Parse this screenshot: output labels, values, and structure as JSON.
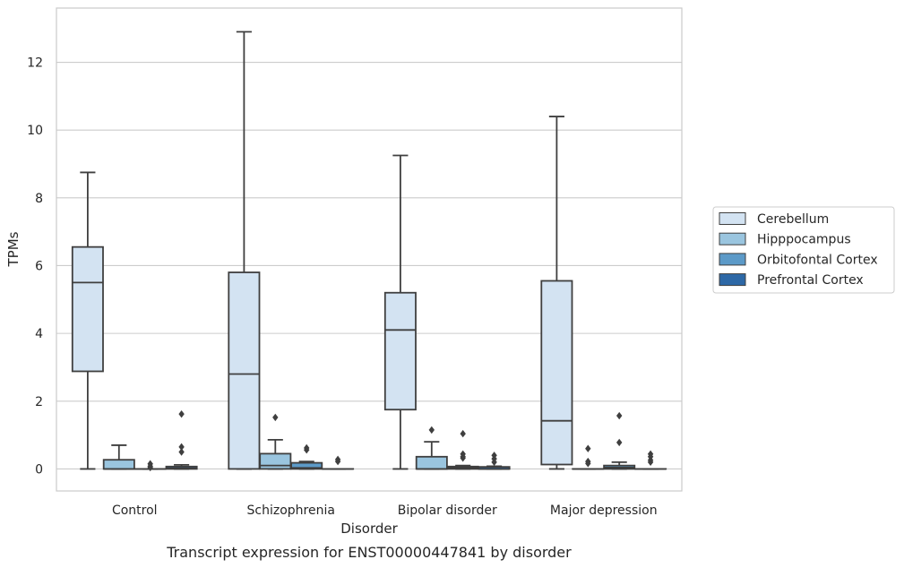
{
  "caption": "Transcript expression for ENST00000447841 by disorder",
  "chart_data": {
    "type": "box",
    "xlabel": "Disorder",
    "ylabel": "TPMs",
    "categories": [
      "Control",
      "Schizophrenia",
      "Bipolar disorder",
      "Major depression"
    ],
    "ylim": [
      -0.65,
      13.6
    ],
    "yticks": [
      0,
      2,
      4,
      6,
      8,
      10,
      12
    ],
    "ytick_labels": [
      "0",
      "2",
      "4",
      "6",
      "8",
      "10",
      "12"
    ],
    "grid": "horizontal",
    "legend_position": "right",
    "series": [
      {
        "name": "Cerebellum",
        "color": "#d3e3f2",
        "boxes": [
          {
            "whislo": 0.0,
            "q1": 2.88,
            "med": 5.5,
            "q3": 6.55,
            "whishi": 8.75,
            "fliers": []
          },
          {
            "whislo": 0.0,
            "q1": 0.0,
            "med": 2.8,
            "q3": 5.8,
            "whishi": 12.9,
            "fliers": []
          },
          {
            "whislo": 0.0,
            "q1": 1.75,
            "med": 4.1,
            "q3": 5.2,
            "whishi": 9.25,
            "fliers": []
          },
          {
            "whislo": 0.0,
            "q1": 0.13,
            "med": 1.42,
            "q3": 5.55,
            "whishi": 10.4,
            "fliers": []
          }
        ]
      },
      {
        "name": "Hipppocampus",
        "color": "#9ac5df",
        "boxes": [
          {
            "whislo": 0.0,
            "q1": 0.0,
            "med": 0.0,
            "q3": 0.27,
            "whishi": 0.7,
            "fliers": []
          },
          {
            "whislo": 0.0,
            "q1": 0.0,
            "med": 0.1,
            "q3": 0.45,
            "whishi": 0.86,
            "fliers": [
              1.52
            ]
          },
          {
            "whislo": 0.0,
            "q1": 0.0,
            "med": 0.0,
            "q3": 0.36,
            "whishi": 0.8,
            "fliers": [
              1.15
            ]
          },
          {
            "whislo": 0.0,
            "q1": 0.0,
            "med": 0.0,
            "q3": 0.0,
            "whishi": 0.0,
            "fliers": [
              0.6,
              0.22,
              0.16
            ]
          }
        ]
      },
      {
        "name": "Orbitofontal Cortex",
        "color": "#5c9ac8",
        "boxes": [
          {
            "whislo": 0.0,
            "q1": 0.0,
            "med": 0.0,
            "q3": 0.0,
            "whishi": 0.0,
            "fliers": [
              0.15,
              0.08,
              0.04
            ]
          },
          {
            "whislo": 0.0,
            "q1": 0.0,
            "med": 0.03,
            "q3": 0.18,
            "whishi": 0.22,
            "fliers": [
              0.62,
              0.56
            ]
          },
          {
            "whislo": 0.0,
            "q1": 0.0,
            "med": 0.03,
            "q3": 0.07,
            "whishi": 0.1,
            "fliers": [
              1.04,
              0.44,
              0.36,
              0.32
            ]
          },
          {
            "whislo": 0.0,
            "q1": 0.0,
            "med": 0.04,
            "q3": 0.1,
            "whishi": 0.2,
            "fliers": [
              1.57,
              0.78
            ]
          }
        ]
      },
      {
        "name": "Prefrontal Cortex",
        "color": "#2d68a6",
        "boxes": [
          {
            "whislo": 0.0,
            "q1": 0.0,
            "med": 0.02,
            "q3": 0.07,
            "whishi": 0.12,
            "fliers": [
              1.62,
              0.65,
              0.5
            ]
          },
          {
            "whislo": 0.0,
            "q1": 0.0,
            "med": 0.0,
            "q3": 0.0,
            "whishi": 0.0,
            "fliers": [
              0.28,
              0.22
            ]
          },
          {
            "whislo": 0.0,
            "q1": 0.0,
            "med": 0.0,
            "q3": 0.06,
            "whishi": 0.08,
            "fliers": [
              0.4,
              0.3,
              0.2
            ]
          },
          {
            "whislo": 0.0,
            "q1": 0.0,
            "med": 0.0,
            "q3": 0.0,
            "whishi": 0.0,
            "fliers": [
              0.44,
              0.36,
              0.26,
              0.2
            ]
          }
        ]
      }
    ]
  }
}
